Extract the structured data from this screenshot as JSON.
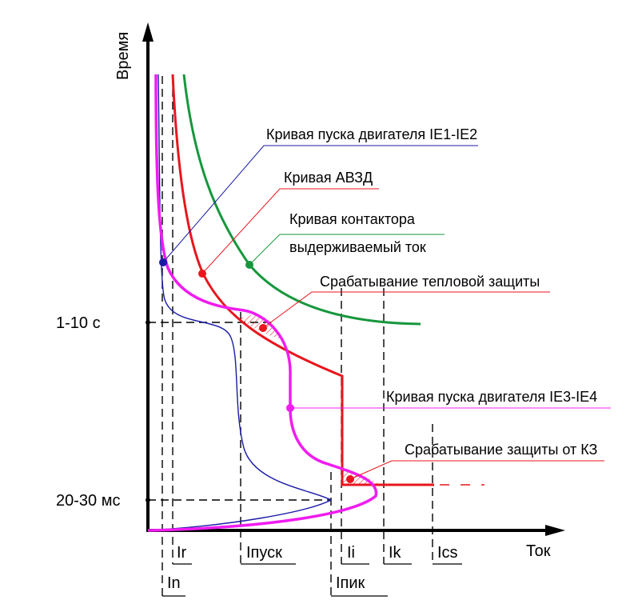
{
  "axes": {
    "y_label": "Время",
    "x_label": "Ток"
  },
  "time_ticks": {
    "upper": "1-10 с",
    "lower": "20-30 мс"
  },
  "current_ticks": {
    "in": "In",
    "ir": "Ir",
    "ipusk": "Iпуск",
    "ipik": "Iпик",
    "ii": "Ii",
    "ik": "Ik",
    "ics": "Ics"
  },
  "labels": {
    "motor_start_ie1_ie2": "Кривая пуска двигателя IE1-IE2",
    "breaker_curve": "Кривая АВЗД",
    "contactor_curve_line1": "Кривая контактора",
    "contactor_curve_line2": "выдерживаемый ток",
    "thermal_trip": "Срабатывание тепловой защиты",
    "motor_start_ie3_ie4": "Кривая пуска двигателя IE3-IE4",
    "short_circuit_trip": "Срабатывание защиты от КЗ"
  },
  "colors": {
    "motor_ie1_ie2": "#1a1aa8",
    "breaker": "#e8161e",
    "contactor": "#17973d",
    "motor_ie3_ie4": "#f01cf0",
    "axis": "#000000"
  }
}
